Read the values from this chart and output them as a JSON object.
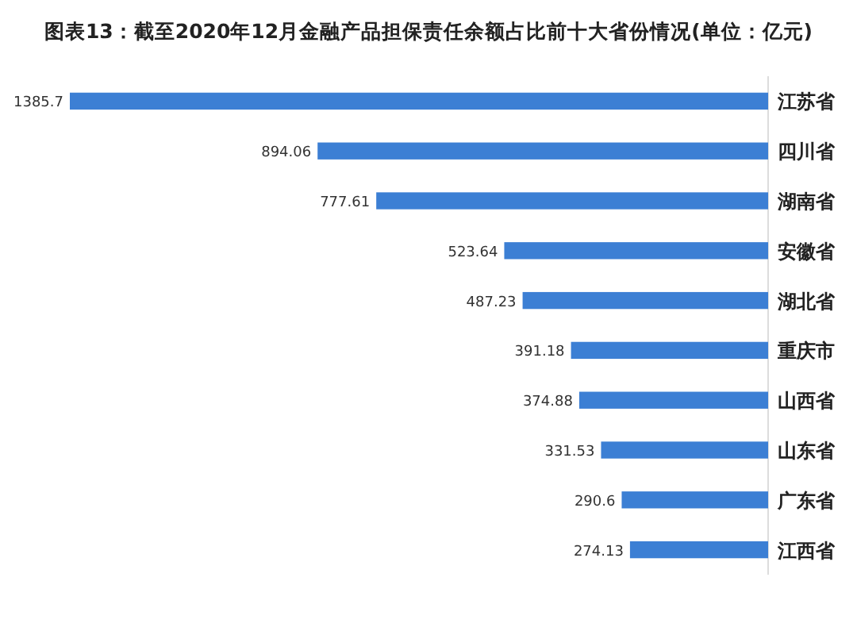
{
  "chart_data": {
    "type": "bar",
    "orientation": "horizontal",
    "title": "图表13：截至2020年12月金融产品担保责任余额占比前十大省份情况(单位：亿元)",
    "categories": [
      "江苏省",
      "四川省",
      "湖南省",
      "安徽省",
      "湖北省",
      "重庆市",
      "山西省",
      "山东省",
      "广东省",
      "江西省"
    ],
    "values": [
      1385.7,
      894.06,
      777.61,
      523.64,
      487.23,
      391.18,
      374.88,
      331.53,
      290.6,
      274.13
    ],
    "color": "#3c7fd4",
    "data_labels": true
  }
}
